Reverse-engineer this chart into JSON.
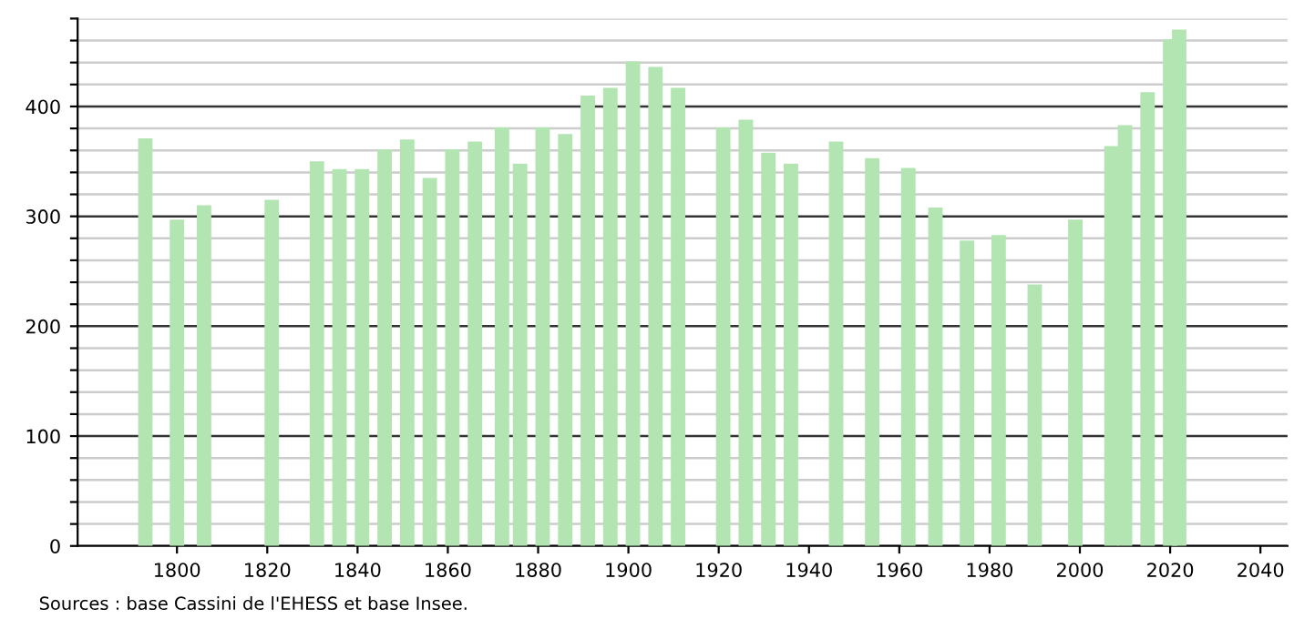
{
  "chart_data": {
    "type": "bar",
    "x": [
      1793,
      1800,
      1806,
      1821,
      1831,
      1836,
      1841,
      1846,
      1851,
      1856,
      1861,
      1866,
      1872,
      1876,
      1881,
      1886,
      1891,
      1896,
      1901,
      1906,
      1911,
      1921,
      1926,
      1931,
      1936,
      1946,
      1954,
      1962,
      1968,
      1975,
      1982,
      1990,
      1999,
      2007,
      2010,
      2015,
      2020,
      2022
    ],
    "values": [
      371,
      297,
      310,
      315,
      350,
      343,
      343,
      361,
      370,
      335,
      361,
      368,
      381,
      348,
      381,
      375,
      410,
      417,
      441,
      436,
      417,
      381,
      388,
      358,
      348,
      368,
      353,
      344,
      308,
      278,
      283,
      238,
      297,
      364,
      383,
      413,
      461,
      470
    ],
    "color": "#b2e5b2",
    "xlim": [
      1778,
      2046
    ],
    "xticks": [
      1800,
      1820,
      1840,
      1860,
      1880,
      1900,
      1920,
      1940,
      1960,
      1980,
      2000,
      2020,
      2040
    ],
    "ylim": [
      0,
      480
    ],
    "yticks": [
      0,
      {
        "value": 20,
        "label": null
      },
      {
        "value": 40,
        "label": null
      },
      {
        "value": 60,
        "label": null
      },
      {
        "value": 80,
        "label": null
      },
      100,
      {
        "value": 120,
        "label": null
      },
      {
        "value": 140,
        "label": null
      },
      {
        "value": 160,
        "label": null
      },
      {
        "value": 180,
        "label": null
      },
      200,
      {
        "value": 220,
        "label": null
      },
      {
        "value": 240,
        "label": null
      },
      {
        "value": 260,
        "label": null
      },
      {
        "value": 280,
        "label": null
      },
      300,
      {
        "value": 320,
        "label": null
      },
      {
        "value": 340,
        "label": null
      },
      {
        "value": 360,
        "label": null
      },
      {
        "value": 380,
        "label": null
      },
      400,
      {
        "value": 420,
        "label": null
      },
      {
        "value": 440,
        "label": null
      },
      {
        "value": 460,
        "label": null
      },
      {
        "value": 480,
        "label": null
      }
    ],
    "grid": "y",
    "annotations": [
      "Sources : base Cassini de l'EHESS et base Insee."
    ]
  }
}
